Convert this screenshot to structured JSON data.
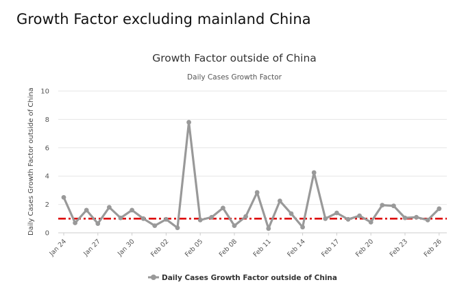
{
  "page": {
    "heading": "Growth Factor excluding mainland China"
  },
  "chart_data": {
    "type": "line",
    "title": "Growth Factor outside of China",
    "subtitle": "Daily Cases Growth Factor",
    "xlabel": "",
    "ylabel": "Daily Cases Growth Factor outside of China",
    "ylim": [
      0,
      10
    ],
    "yticks": [
      0,
      2,
      4,
      6,
      8,
      10
    ],
    "grid": true,
    "legend_position": "bottom-center",
    "x_tick_labels": [
      "Jan 24",
      "Jan 27",
      "Jan 30",
      "Feb 02",
      "Feb 05",
      "Feb 08",
      "Feb 11",
      "Feb 14",
      "Feb 17",
      "Feb 20",
      "Feb 23",
      "Feb 26"
    ],
    "x_tick_interval_days": 3,
    "x": [
      "Jan 24",
      "Jan 25",
      "Jan 26",
      "Jan 27",
      "Jan 28",
      "Jan 29",
      "Jan 30",
      "Jan 31",
      "Feb 01",
      "Feb 02",
      "Feb 03",
      "Feb 04",
      "Feb 05",
      "Feb 06",
      "Feb 07",
      "Feb 08",
      "Feb 09",
      "Feb 10",
      "Feb 11",
      "Feb 12",
      "Feb 13",
      "Feb 14",
      "Feb 15",
      "Feb 16",
      "Feb 17",
      "Feb 18",
      "Feb 19",
      "Feb 20",
      "Feb 21",
      "Feb 22",
      "Feb 23",
      "Feb 24",
      "Feb 25",
      "Feb 26"
    ],
    "series": [
      {
        "name": "Daily Cases Growth Factor outside of China",
        "color": "#999999",
        "values": [
          2.5,
          0.7,
          1.6,
          0.65,
          1.8,
          1.05,
          1.6,
          1.0,
          0.5,
          0.95,
          0.35,
          7.8,
          0.9,
          1.1,
          1.75,
          0.5,
          1.15,
          2.85,
          0.3,
          2.25,
          1.35,
          0.4,
          4.25,
          1.0,
          1.4,
          0.95,
          1.2,
          0.75,
          1.95,
          1.9,
          1.05,
          1.1,
          0.9,
          1.7
        ]
      }
    ],
    "reference_line": {
      "value": 1.0,
      "color": "#dd0000",
      "style": "dash-dot"
    }
  }
}
